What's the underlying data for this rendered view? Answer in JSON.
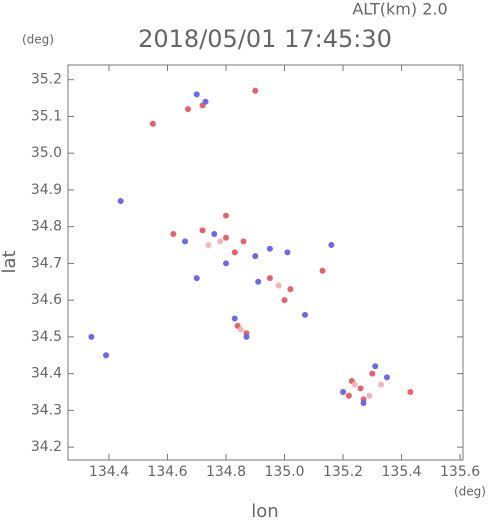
{
  "chart_data": {
    "type": "scatter",
    "title": "2018/05/01 17:45:30",
    "subtitle": "ALT(km) 2.0",
    "y_unit": "(deg)",
    "x_unit": "(deg)",
    "x_label": "lon",
    "y_label": "lat",
    "xlim": [
      134.26,
      135.61
    ],
    "ylim": [
      34.165,
      35.24
    ],
    "xticks": [
      134.4,
      134.6,
      134.8,
      {
        "value": 135,
        "label": "135.0"
      },
      135.2,
      135.4,
      135.6
    ],
    "yticks": [
      34.2,
      34.3,
      34.4,
      34.5,
      34.6,
      34.7,
      34.8,
      34.9,
      {
        "value": 35,
        "label": "35.0"
      },
      35.1,
      35.2
    ],
    "series": [
      {
        "color": "#e8606a",
        "x": [
          134.55,
          134.67,
          134.72,
          134.9,
          134.62,
          134.72,
          134.8,
          134.86,
          134.83,
          134.95,
          135.02,
          135.0,
          134.84,
          134.87,
          135.23,
          135.26,
          135.3,
          135.43,
          135.22,
          135.27,
          135.13,
          134.8
        ],
        "values": [
          35.08,
          35.12,
          35.13,
          35.17,
          34.78,
          34.79,
          34.77,
          34.76,
          34.73,
          34.66,
          34.63,
          34.6,
          34.53,
          34.51,
          34.38,
          34.36,
          34.4,
          34.35,
          34.34,
          34.33,
          34.68,
          34.83
        ]
      },
      {
        "color": "#6a6ae8",
        "x": [
          134.7,
          134.73,
          134.44,
          134.34,
          134.39,
          134.66,
          134.76,
          134.9,
          134.95,
          135.01,
          134.8,
          134.7,
          134.87,
          134.83,
          135.35,
          135.31,
          135.2,
          135.27,
          135.16,
          134.91,
          135.07
        ],
        "values": [
          35.16,
          35.14,
          34.87,
          34.5,
          34.45,
          34.76,
          34.78,
          34.72,
          34.74,
          34.73,
          34.7,
          34.66,
          34.5,
          34.55,
          34.39,
          34.42,
          34.35,
          34.32,
          34.75,
          34.65,
          34.56
        ]
      },
      {
        "color": "#f2b8b8",
        "x": [
          134.74,
          134.98,
          134.85,
          135.24,
          135.33,
          134.78,
          135.29
        ],
        "values": [
          34.75,
          34.64,
          34.52,
          34.37,
          34.37,
          34.76,
          34.34
        ]
      }
    ]
  }
}
